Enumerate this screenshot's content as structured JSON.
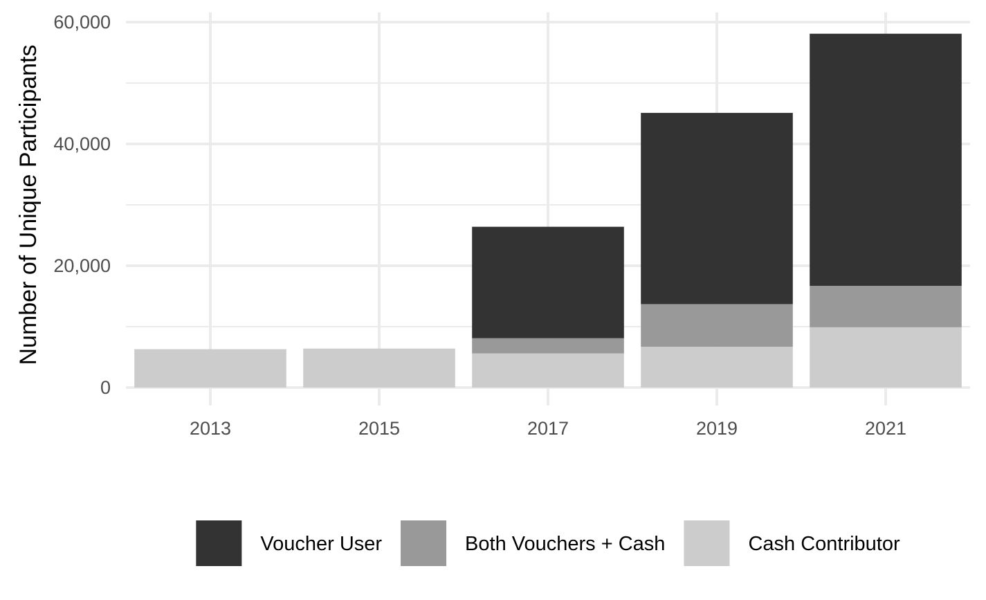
{
  "chart_data": {
    "type": "bar",
    "stacked": true,
    "xlabel": "",
    "ylabel": "Number of Unique Participants",
    "categories": [
      "2013",
      "2015",
      "2017",
      "2019",
      "2021"
    ],
    "ylim": [
      0,
      60000
    ],
    "yticks": [
      0,
      20000,
      40000,
      60000
    ],
    "ytick_labels": [
      "0",
      "20,000",
      "40,000",
      "60,000"
    ],
    "grid": true,
    "legend_position": "bottom",
    "series": [
      {
        "name": "Cash Contributor",
        "color": "#cccccc",
        "values": [
          6300,
          6400,
          5600,
          6700,
          9900
        ]
      },
      {
        "name": "Both Vouchers + Cash",
        "color": "#999999",
        "values": [
          0,
          0,
          2500,
          7000,
          6800
        ]
      },
      {
        "name": "Voucher User",
        "color": "#333333",
        "values": [
          0,
          0,
          18300,
          31400,
          41400
        ]
      }
    ],
    "legend_order": [
      "Voucher User",
      "Both Vouchers + Cash",
      "Cash Contributor"
    ]
  }
}
